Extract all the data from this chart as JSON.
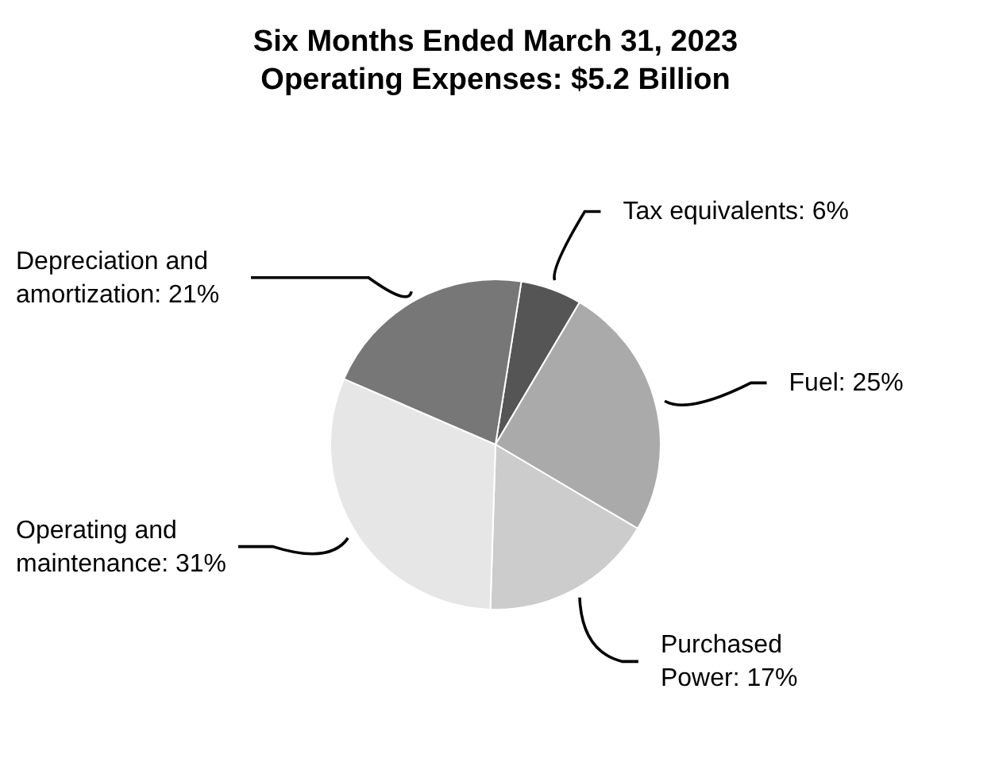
{
  "chart_data": {
    "type": "pie",
    "title": "Six Months Ended March 31, 2023\nOperating Expenses: $5.2 Billion",
    "categories": [
      "Tax equivalents",
      "Fuel",
      "Purchased Power",
      "Operating and maintenance",
      "Depreciation and amortization"
    ],
    "value_labels": [
      "6%",
      "25%",
      "17%",
      "31%",
      "21%"
    ],
    "values": [
      6,
      25,
      17,
      31,
      21
    ],
    "colors": [
      "#555555",
      "#aaaaaa",
      "#cccccc",
      "#e6e6e6",
      "#777777"
    ],
    "legend": false
  }
}
